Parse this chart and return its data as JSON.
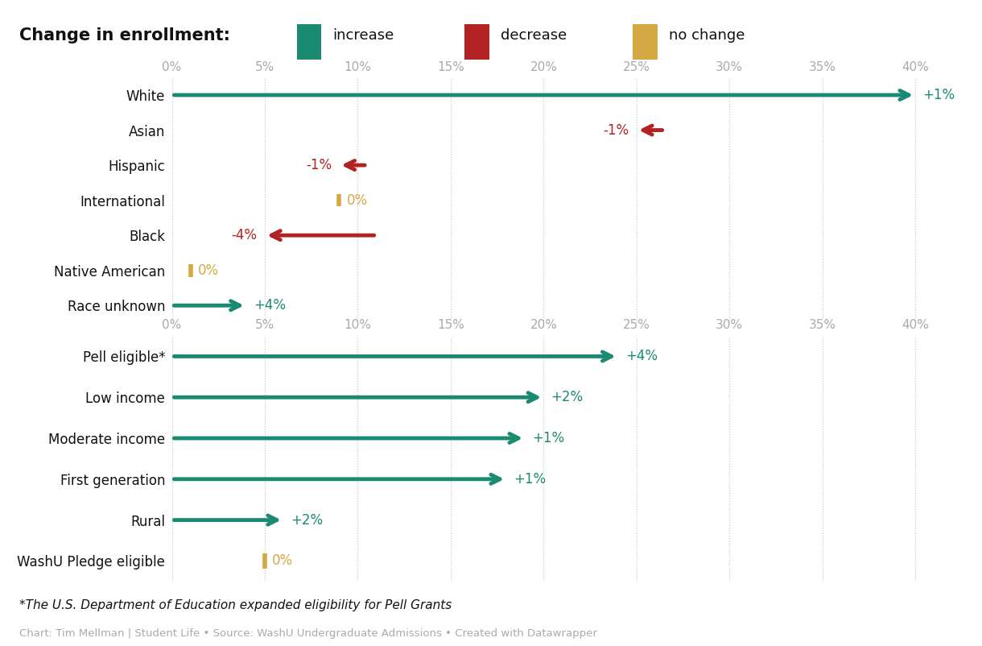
{
  "panel1": {
    "categories": [
      "White",
      "Asian",
      "Hispanic",
      "International",
      "Black",
      "Native American",
      "Race unknown"
    ],
    "end_values": [
      40,
      25,
      9,
      9,
      5,
      1,
      4
    ],
    "changes": [
      1,
      -1,
      -1,
      0,
      -4,
      0,
      4
    ],
    "labels": [
      "+1%",
      "-1%",
      "-1%",
      "0%",
      "-4%",
      "0%",
      "+4%"
    ],
    "colors": [
      "#1a8a72",
      "#b22222",
      "#b22222",
      "#d4a843",
      "#b22222",
      "#d4a843",
      "#1a8a72"
    ]
  },
  "panel2": {
    "categories": [
      "Pell eligible*",
      "Low income",
      "Moderate income",
      "First generation",
      "Rural",
      "WashU Pledge eligible"
    ],
    "end_values": [
      24,
      20,
      19,
      18,
      6,
      5
    ],
    "changes": [
      4,
      2,
      1,
      1,
      2,
      0
    ],
    "labels": [
      "+4%",
      "+2%",
      "+1%",
      "+1%",
      "+2%",
      "0%"
    ],
    "colors": [
      "#1a8a72",
      "#1a8a72",
      "#1a8a72",
      "#1a8a72",
      "#1a8a72",
      "#d4a843"
    ]
  },
  "xlim": [
    0,
    42
  ],
  "xticks": [
    0,
    5,
    10,
    15,
    20,
    25,
    30,
    35,
    40
  ],
  "xticklabels": [
    "0%",
    "5%",
    "10%",
    "15%",
    "20%",
    "25%",
    "30%",
    "35%",
    "40%"
  ],
  "color_increase": "#1a8a72",
  "color_decrease": "#b22222",
  "color_nochange": "#d4a843",
  "footnote": "*The U.S. Department of Education expanded eligibility for Pell Grants",
  "source": "Chart: Tim Mellman | Student Life • Source: WashU Undergraduate Admissions • Created with Datawrapper",
  "bg_color": "#ffffff",
  "grid_color": "#c8c8c8",
  "arrow_linewidth": 3.5,
  "tick_color": "#aaaaaa",
  "tick_fontsize": 11,
  "label_fontsize": 12,
  "category_fontsize": 12
}
